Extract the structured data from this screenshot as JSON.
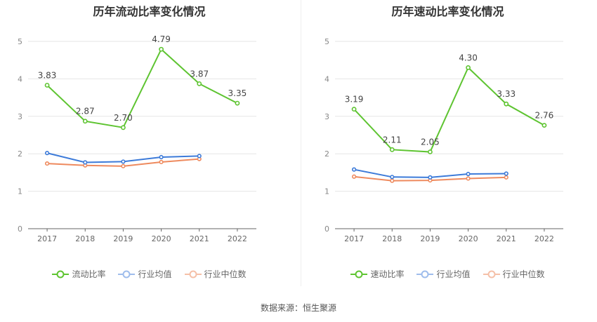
{
  "source_label": "数据来源：恒生聚源",
  "chart_data": [
    {
      "type": "line",
      "title": "历年流动比率变化情况",
      "categories": [
        "2017",
        "2018",
        "2019",
        "2020",
        "2021",
        "2022"
      ],
      "ylim": [
        0,
        5
      ],
      "yticks": [
        "0",
        "1",
        "2",
        "3",
        "4",
        "5"
      ],
      "legend_position": "bottom-center",
      "grid": true,
      "series": [
        {
          "name": "流动比率",
          "color": "#5ec431",
          "values": [
            3.83,
            2.87,
            2.7,
            4.79,
            3.87,
            3.35
          ],
          "labels": [
            "3.83",
            "2.87",
            "2.70",
            "4.79",
            "3.87",
            "3.35"
          ]
        },
        {
          "name": "行业均值",
          "color": "#3d7bd9",
          "values": [
            2.02,
            1.77,
            1.79,
            1.91,
            1.94,
            null
          ]
        },
        {
          "name": "行业中位数",
          "color": "#ee8a5e",
          "values": [
            1.74,
            1.69,
            1.67,
            1.78,
            1.86,
            null
          ]
        }
      ]
    },
    {
      "type": "line",
      "title": "历年速动比率变化情况",
      "categories": [
        "2017",
        "2018",
        "2019",
        "2020",
        "2021",
        "2022"
      ],
      "ylim": [
        0,
        5
      ],
      "yticks": [
        "0",
        "1",
        "2",
        "3",
        "4",
        "5"
      ],
      "legend_position": "bottom-center",
      "grid": true,
      "series": [
        {
          "name": "速动比率",
          "color": "#5ec431",
          "values": [
            3.19,
            2.11,
            2.05,
            4.3,
            3.33,
            2.76
          ],
          "labels": [
            "3.19",
            "2.11",
            "2.05",
            "4.30",
            "3.33",
            "2.76"
          ]
        },
        {
          "name": "行业均值",
          "color": "#3d7bd9",
          "values": [
            1.58,
            1.38,
            1.37,
            1.46,
            1.47,
            null
          ]
        },
        {
          "name": "行业中位数",
          "color": "#ee8a5e",
          "values": [
            1.39,
            1.28,
            1.29,
            1.34,
            1.37,
            null
          ]
        }
      ]
    }
  ]
}
